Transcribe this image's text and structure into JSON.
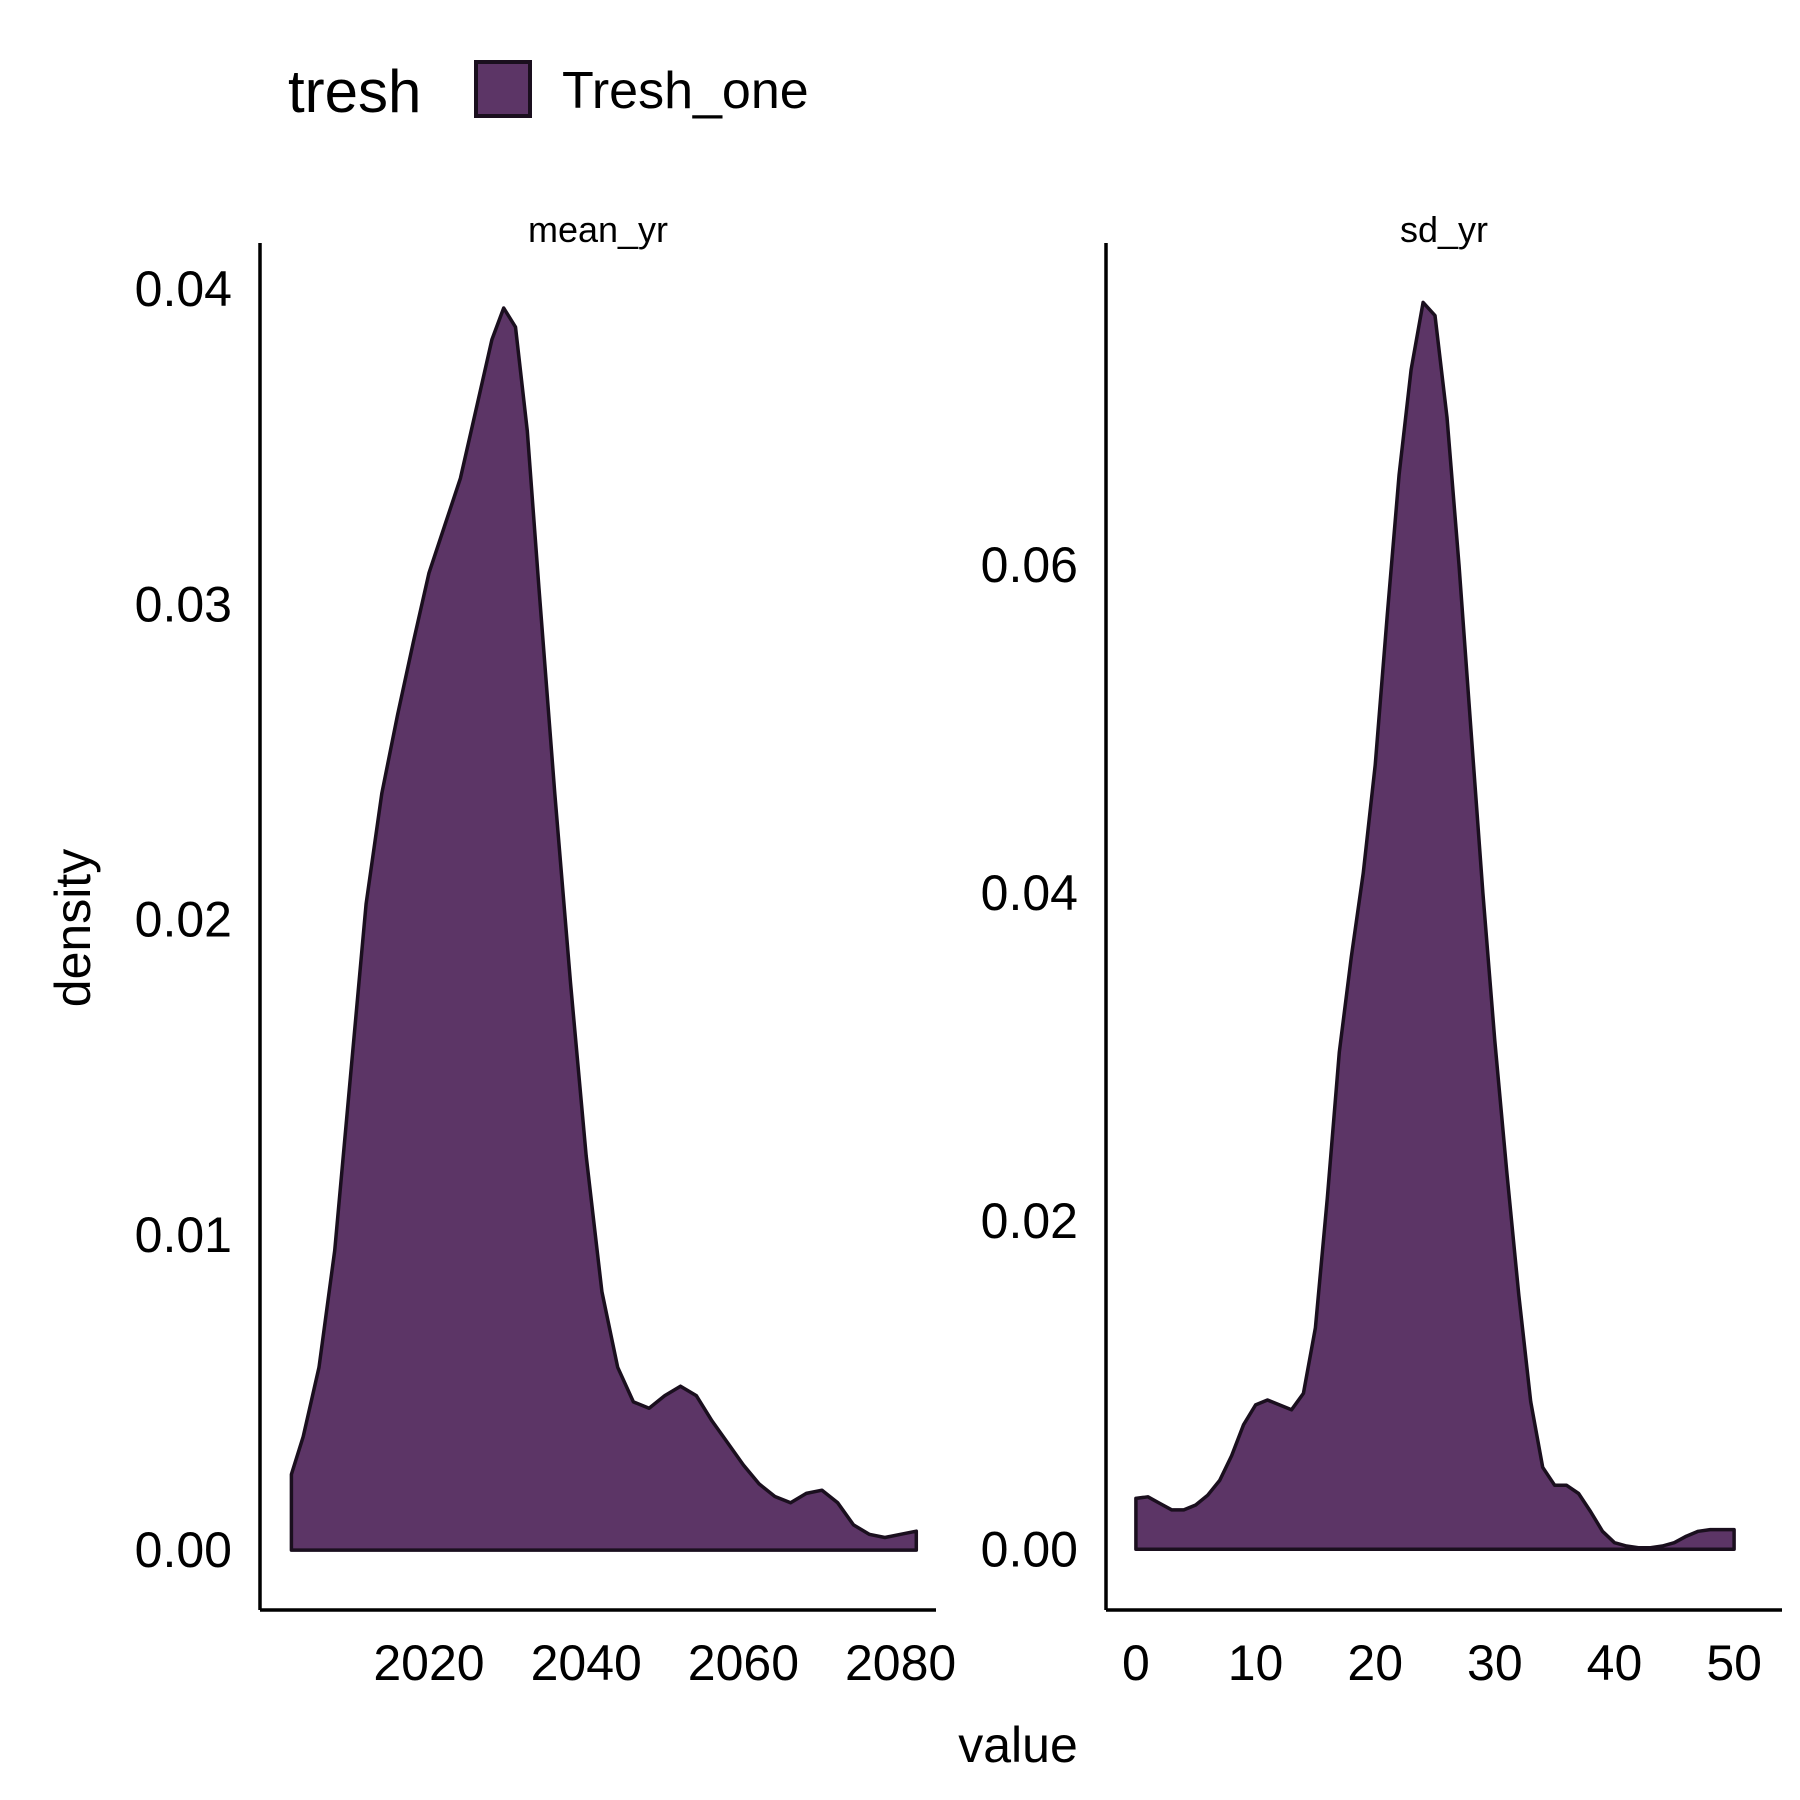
{
  "colors": {
    "fill": "#5c3566",
    "outline": "#1a0f1e",
    "axis": "#000000"
  },
  "chart_data": {
    "type": "area",
    "subtype": "density",
    "xlabel": "value",
    "ylabel": "density",
    "legend": {
      "title": "tresh",
      "placement": "top-left",
      "entries": [
        {
          "name": "Tresh_one",
          "color": "#5c3566"
        }
      ]
    },
    "grid": false,
    "panels": [
      {
        "strip": "mean_yr",
        "xlim": [
          1998.5,
          2084.5
        ],
        "ylim": [
          -0.0019,
          0.0414
        ],
        "xticks": [
          2020,
          2040,
          2060,
          2080
        ],
        "xtick_labels": [
          "2020",
          "2040",
          "2060",
          "2080"
        ],
        "yticks": [
          0,
          0.01,
          0.02,
          0.03,
          0.04
        ],
        "ytick_labels": [
          "0.00",
          "0.01",
          "0.02",
          "0.03",
          "0.04"
        ],
        "series": [
          {
            "name": "Tresh_one",
            "x": [
              2002.5,
              2004,
              2006,
              2008,
              2010,
              2012,
              2014,
              2016,
              2018,
              2020,
              2022,
              2024,
              2026,
              2028,
              2029.5,
              2031,
              2032.5,
              2034,
              2036,
              2038,
              2040,
              2042,
              2044,
              2046,
              2048,
              2050,
              2052,
              2054,
              2056,
              2058,
              2060,
              2062,
              2064,
              2066,
              2068,
              2070,
              2072,
              2074,
              2076,
              2078,
              2080,
              2082
            ],
            "y": [
              0.0024,
              0.0036,
              0.0058,
              0.0095,
              0.015,
              0.0205,
              0.024,
              0.0265,
              0.0288,
              0.031,
              0.0325,
              0.034,
              0.0362,
              0.0384,
              0.0394,
              0.0388,
              0.0355,
              0.0305,
              0.024,
              0.018,
              0.0125,
              0.0082,
              0.0058,
              0.0047,
              0.0045,
              0.0049,
              0.0052,
              0.0049,
              0.0041,
              0.0034,
              0.0027,
              0.0021,
              0.0017,
              0.0015,
              0.0018,
              0.0019,
              0.0015,
              0.0008,
              0.0005,
              0.0004,
              0.0005,
              0.0006
            ]
          }
        ]
      },
      {
        "strip": "sd_yr",
        "xlim": [
          -2.5,
          54
        ],
        "ylim": [
          -0.0037,
          0.0795
        ],
        "xticks": [
          0,
          10,
          20,
          30,
          40,
          50
        ],
        "xtick_labels": [
          "0",
          "10",
          "20",
          "30",
          "40",
          "50"
        ],
        "yticks": [
          0,
          0.02,
          0.04,
          0.06
        ],
        "ytick_labels": [
          "0.00",
          "0.02",
          "0.04",
          "0.06"
        ],
        "series": [
          {
            "name": "Tresh_one",
            "x": [
              0,
              1,
              2,
              3,
              4,
              5,
              6,
              7,
              8,
              9,
              10,
              11,
              12,
              13,
              14,
              15,
              16,
              17,
              18,
              19,
              20,
              21,
              22,
              23,
              24,
              25,
              26,
              27,
              28,
              29,
              30,
              31,
              32,
              33,
              34,
              35,
              36,
              37,
              38,
              39,
              40,
              41,
              42,
              43,
              44,
              45,
              46,
              47,
              48,
              49,
              50
            ],
            "y": [
              0.0031,
              0.0032,
              0.0028,
              0.0024,
              0.0024,
              0.0027,
              0.0033,
              0.0042,
              0.0057,
              0.0076,
              0.0088,
              0.0091,
              0.0088,
              0.0085,
              0.0095,
              0.0135,
              0.0214,
              0.0303,
              0.0361,
              0.0412,
              0.0478,
              0.0569,
              0.0655,
              0.0719,
              0.076,
              0.0752,
              0.069,
              0.06,
              0.05,
              0.04,
              0.031,
              0.023,
              0.0155,
              0.009,
              0.005,
              0.0039,
              0.0039,
              0.0034,
              0.0023,
              0.0011,
              0.0004,
              0.0002,
              0.0001,
              0.0001,
              0.0002,
              0.0004,
              0.0008,
              0.0011,
              0.0012,
              0.0012,
              0.0012
            ]
          }
        ]
      }
    ]
  }
}
